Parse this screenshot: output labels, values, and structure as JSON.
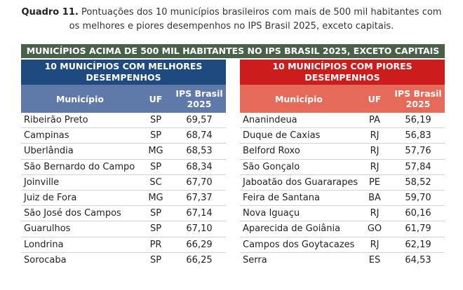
{
  "caption": {
    "label": "Quadro 11.",
    "text_line1": "Pontuações dos 10 municípios brasileiros com mais de 500 mil habitantes com",
    "text_line2": "os melhores e piores desempenhos no IPS Brasil 2025, exceto capitais."
  },
  "main_header": "MUNICÍPIOS ACIMA DE 500 MIL HABITANTES NO IPS BRASIL 2025, EXCETO CAPITAIS",
  "best": {
    "title_line1": "10 MUNICÍPIOS COM MELHORES",
    "title_line2": "DESEMPENHOS",
    "columns": {
      "municipio": "Município",
      "uf": "UF",
      "ips_line1": "IPS Brasil",
      "ips_line2": "2025"
    },
    "rows": [
      {
        "municipio": "Ribeirão Preto",
        "uf": "SP",
        "ips": "69,57"
      },
      {
        "municipio": "Campinas",
        "uf": "SP",
        "ips": "68,74"
      },
      {
        "municipio": "Uberlândia",
        "uf": "MG",
        "ips": "68,53"
      },
      {
        "municipio": "São Bernardo do Campo",
        "uf": "SP",
        "ips": "68,34"
      },
      {
        "municipio": "Joinville",
        "uf": "SC",
        "ips": "67,70"
      },
      {
        "municipio": "Juiz de Fora",
        "uf": "MG",
        "ips": "67,37"
      },
      {
        "municipio": "São José dos Campos",
        "uf": "SP",
        "ips": "67,14"
      },
      {
        "municipio": "Guarulhos",
        "uf": "SP",
        "ips": "67,10"
      },
      {
        "municipio": "Londrina",
        "uf": "PR",
        "ips": "66,29"
      },
      {
        "municipio": "Sorocaba",
        "uf": "SP",
        "ips": "66,25"
      }
    ]
  },
  "worst": {
    "title_line1": "10 MUNICÍPIOS COM PIORES",
    "title_line2": "DESEMPENHOS",
    "columns": {
      "municipio": "Município",
      "uf": "UF",
      "ips_line1": "IPS Brasil",
      "ips_line2": "2025"
    },
    "rows": [
      {
        "municipio": "Ananindeua",
        "uf": "PA",
        "ips": "56,19"
      },
      {
        "municipio": "Duque de Caxias",
        "uf": "RJ",
        "ips": "56,83"
      },
      {
        "municipio": "Belford Roxo",
        "uf": "RJ",
        "ips": "57,76"
      },
      {
        "municipio": "São Gonçalo",
        "uf": "RJ",
        "ips": "57,84"
      },
      {
        "municipio": "Jaboatão dos Guararapes",
        "uf": "PE",
        "ips": "58,52"
      },
      {
        "municipio": "Feira de Santana",
        "uf": "BA",
        "ips": "59,70"
      },
      {
        "municipio": "Nova Iguaçu",
        "uf": "RJ",
        "ips": "60,16"
      },
      {
        "municipio": "Aparecida de Goiânia",
        "uf": "GO",
        "ips": "61,79"
      },
      {
        "municipio": "Campos dos Goytacazes",
        "uf": "RJ",
        "ips": "62,19"
      },
      {
        "municipio": "Serra",
        "uf": "ES",
        "ips": "64,53"
      }
    ]
  },
  "colors": {
    "main_header_bg": "#4a6149",
    "best_title_bg": "#1f4a7f",
    "best_columns_bg": "#5f7aa8",
    "worst_title_bg": "#cc1c1c",
    "worst_columns_bg": "#e56a59"
  }
}
